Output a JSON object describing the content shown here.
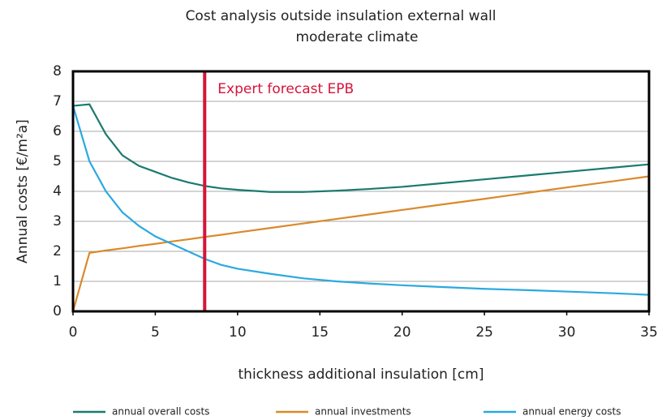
{
  "chart_data": {
    "type": "line",
    "title": "Cost analysis outside insulation external wall",
    "subtitle": "moderate climate",
    "xlabel": "thickness additional insulation [cm]",
    "ylabel": "Annual costs [€/m²a]",
    "x": [
      0,
      1,
      2,
      3,
      4,
      5,
      6,
      7,
      8,
      9,
      10,
      12,
      14,
      16,
      18,
      20,
      22,
      25,
      28,
      30,
      33,
      35
    ],
    "series": [
      {
        "name": "annual overall costs",
        "color": "#1a7a6e",
        "values": [
          6.85,
          6.9,
          5.9,
          5.2,
          4.85,
          4.65,
          4.45,
          4.3,
          4.18,
          4.1,
          4.05,
          3.98,
          3.98,
          4.02,
          4.08,
          4.15,
          4.25,
          4.4,
          4.55,
          4.65,
          4.8,
          4.9
        ]
      },
      {
        "name": "annual investments",
        "color": "#d98a2b",
        "values": [
          0,
          1.95,
          2.03,
          2.1,
          2.18,
          2.25,
          2.33,
          2.4,
          2.48,
          2.55,
          2.63,
          2.78,
          2.93,
          3.08,
          3.23,
          3.38,
          3.53,
          3.75,
          3.98,
          4.13,
          4.35,
          4.5
        ]
      },
      {
        "name": "annual energy costs",
        "color": "#2aa9e0",
        "values": [
          6.85,
          5.0,
          4.0,
          3.3,
          2.85,
          2.5,
          2.25,
          2.0,
          1.75,
          1.55,
          1.42,
          1.25,
          1.1,
          1.0,
          0.93,
          0.87,
          0.82,
          0.75,
          0.7,
          0.66,
          0.6,
          0.55
        ]
      }
    ],
    "annotation": {
      "text": "Expert forecast EPB",
      "x": 8,
      "color": "#d4143a"
    },
    "xlim": [
      0,
      35
    ],
    "xticks": [
      0,
      5,
      10,
      15,
      20,
      25,
      30,
      35
    ],
    "ylim": [
      0,
      8
    ],
    "yticks": [
      0,
      1,
      2,
      3,
      4,
      5,
      6,
      7,
      8
    ],
    "grid": true,
    "legend": "bottom"
  }
}
